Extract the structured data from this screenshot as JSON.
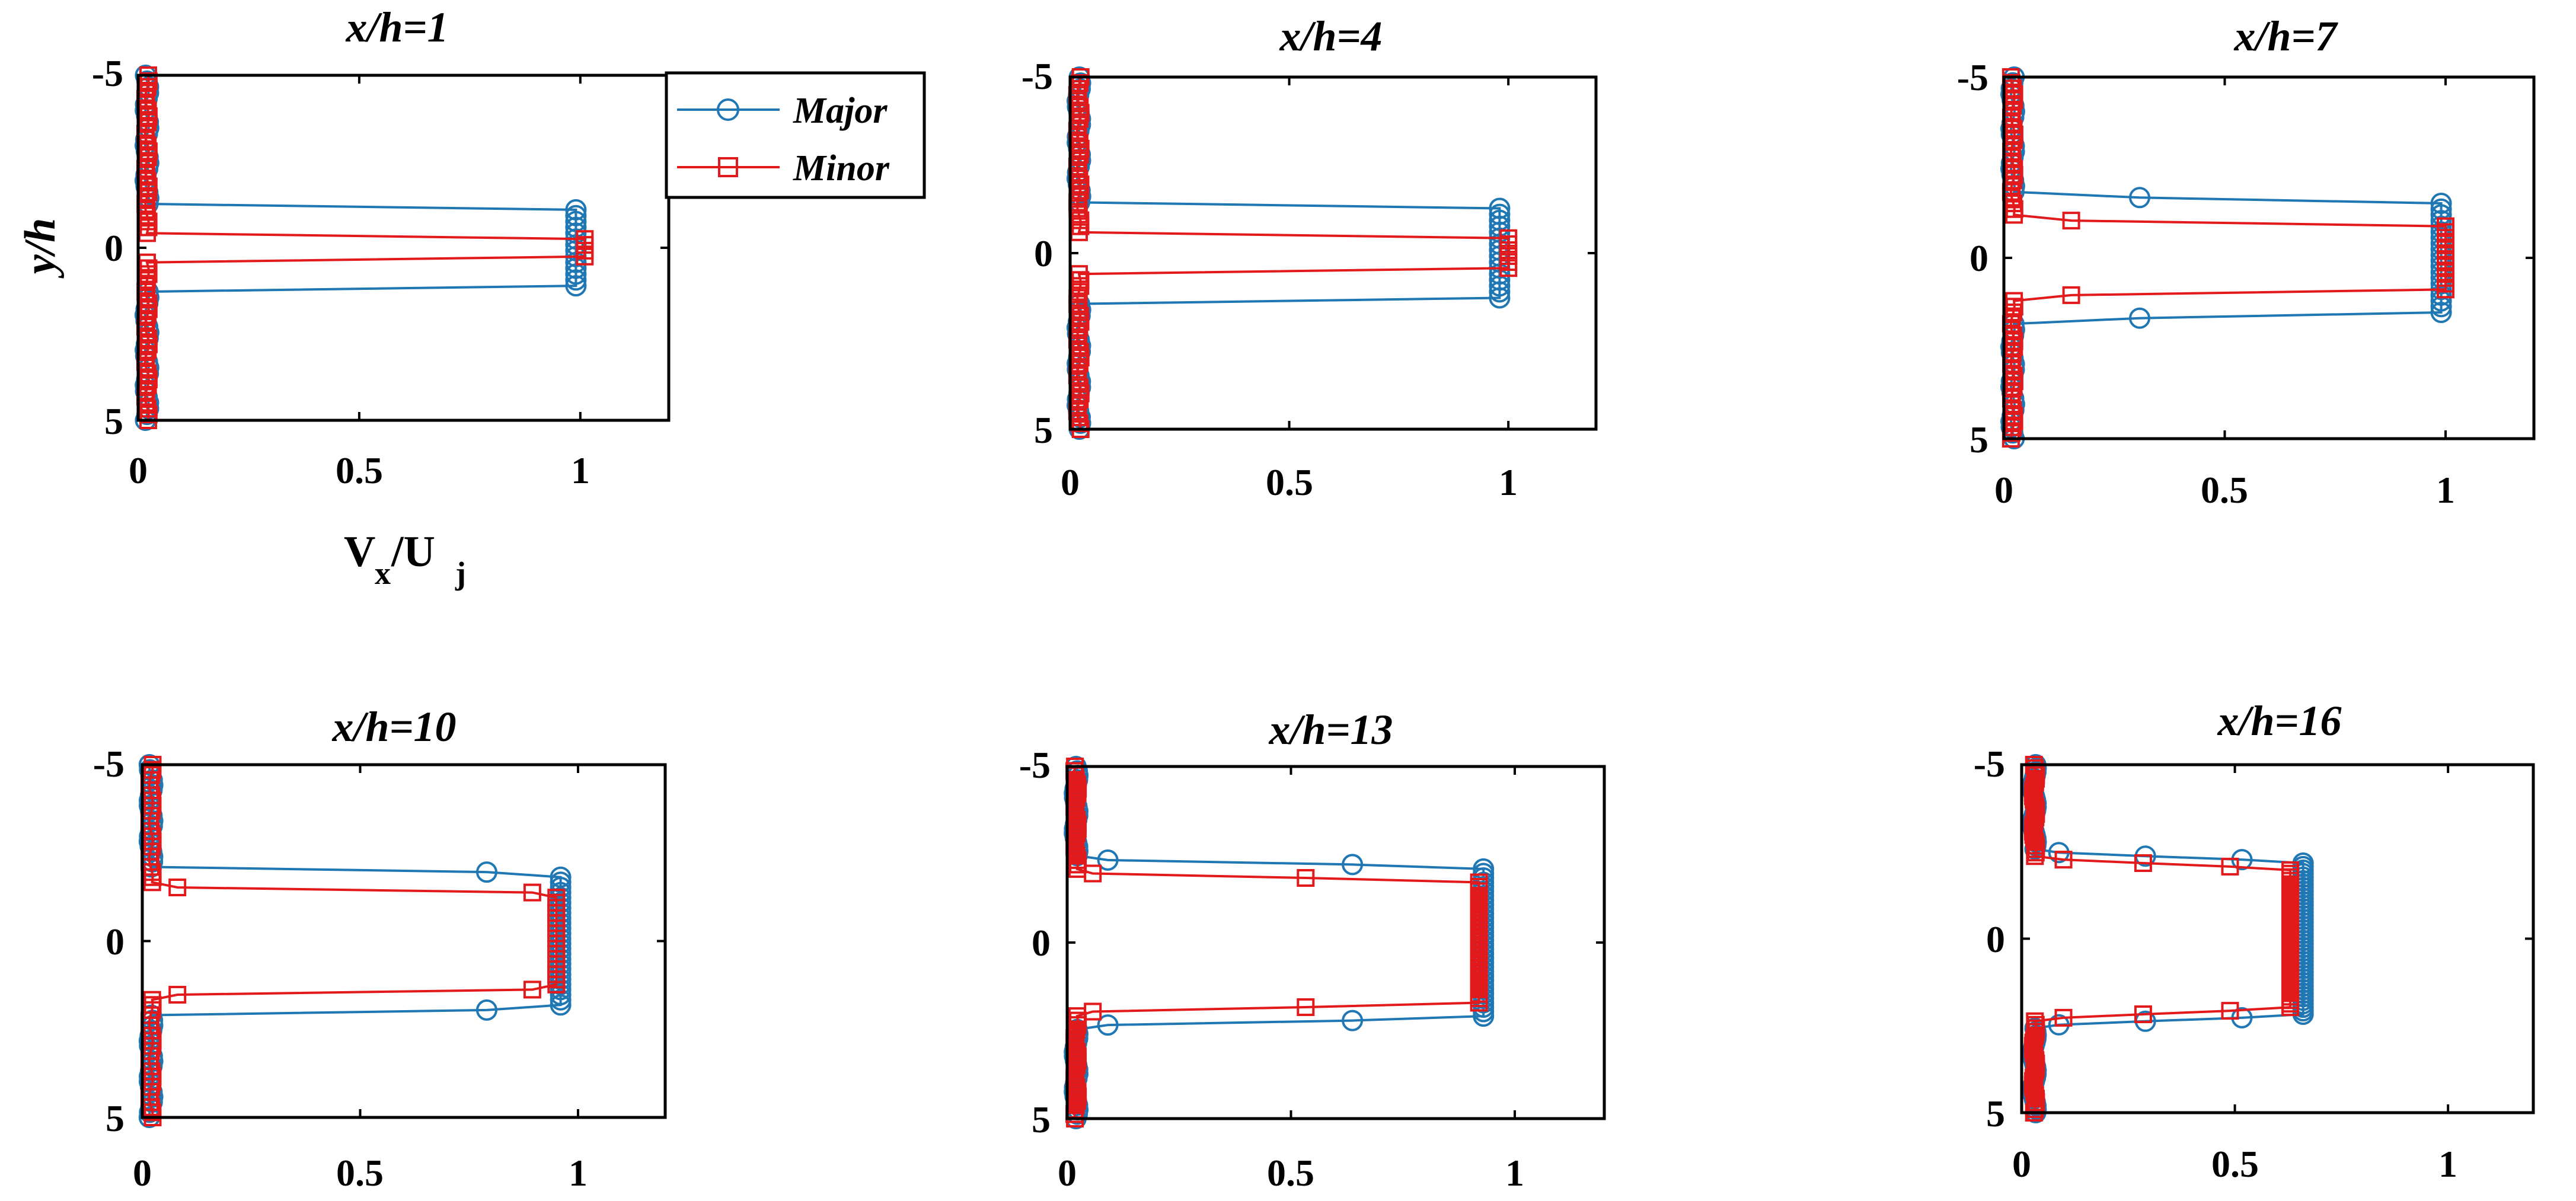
{
  "chart_data": {
    "type": "line",
    "figure_xlabel": {
      "main": "V",
      "sub1": "x",
      "slash": "/U",
      "sub2": "j"
    },
    "figure_ylabel": "y/h",
    "legend": {
      "placement": "top-right of first panel",
      "entries": [
        "Major",
        "Minor"
      ]
    },
    "series_style": {
      "Major": {
        "color": "#1f77b4",
        "marker": "circle"
      },
      "Minor": {
        "color": "#e31a1c",
        "marker": "square"
      }
    },
    "panels": [
      {
        "title": "x/h=1",
        "xlim": [
          0,
          1.2
        ],
        "ylim": [
          -5,
          5
        ],
        "xticks": [
          "0",
          "0.5",
          "1"
        ],
        "yticks": [
          "-5",
          "0",
          "5"
        ],
        "series": [
          {
            "name": "Major",
            "jet_width": 1.15,
            "edge": 0.02,
            "peak": 0.99,
            "floor": 0.02,
            "transition": 0.02,
            "points": 60
          },
          {
            "name": "Minor",
            "jet_width": 0.4,
            "edge": 0.02,
            "peak": 1.01,
            "floor": 0.02,
            "transition": 0.02,
            "points": 60
          }
        ]
      },
      {
        "title": "x/h=4",
        "xlim": [
          0,
          1.2
        ],
        "ylim": [
          -5,
          5
        ],
        "xticks": [
          "0",
          "0.5",
          "1"
        ],
        "yticks": [
          "-5",
          "0",
          "5"
        ],
        "series": [
          {
            "name": "Major",
            "jet_width": 1.35,
            "edge": 0.03,
            "peak": 0.98,
            "floor": 0.02,
            "transition": 0.04,
            "points": 60
          },
          {
            "name": "Minor",
            "jet_width": 0.55,
            "edge": 0.03,
            "peak": 1.0,
            "floor": 0.02,
            "transition": 0.04,
            "points": 60
          }
        ]
      },
      {
        "title": "x/h=7",
        "xlim": [
          0,
          1.2
        ],
        "ylim": [
          -5,
          5
        ],
        "xticks": [
          "0",
          "0.5",
          "1"
        ],
        "yticks": [
          "-5",
          "0",
          "5"
        ],
        "series": [
          {
            "name": "Major",
            "jet_width": 1.65,
            "edge": 0.05,
            "peak": 0.99,
            "floor": 0.02,
            "transition": 0.08,
            "points": 64
          },
          {
            "name": "Minor",
            "jet_width": 1.0,
            "edge": 0.05,
            "peak": 1.0,
            "floor": 0.02,
            "transition": 0.08,
            "points": 64
          }
        ]
      },
      {
        "title": "x/h=10",
        "xlim": [
          0,
          1.2
        ],
        "ylim": [
          -5,
          5
        ],
        "xticks": [
          "0",
          "0.5",
          "1"
        ],
        "yticks": [
          "-5",
          "0",
          "5"
        ],
        "series": [
          {
            "name": "Major",
            "jet_width": 2.0,
            "edge": 0.08,
            "peak": 0.96,
            "floor": 0.02,
            "transition": 0.12,
            "points": 70
          },
          {
            "name": "Minor",
            "jet_width": 1.45,
            "edge": 0.09,
            "peak": 0.95,
            "floor": 0.02,
            "transition": 0.12,
            "points": 70
          }
        ]
      },
      {
        "title": "x/h=13",
        "xlim": [
          0,
          1.2
        ],
        "ylim": [
          -5,
          5
        ],
        "xticks": [
          "0",
          "0.5",
          "1"
        ],
        "yticks": [
          "-5",
          "0",
          "5"
        ],
        "series": [
          {
            "name": "Major",
            "jet_width": 2.25,
            "edge": 0.12,
            "peak": 0.93,
            "floor": 0.02,
            "transition": 0.16,
            "points": 80
          },
          {
            "name": "Minor",
            "jet_width": 1.85,
            "edge": 0.13,
            "peak": 0.92,
            "floor": 0.02,
            "transition": 0.16,
            "points": 80
          }
        ]
      },
      {
        "title": "x/h=16",
        "xlim": [
          0,
          1.2
        ],
        "ylim": [
          -5,
          5
        ],
        "xticks": [
          "0",
          "0.5",
          "1"
        ],
        "yticks": [
          "-5",
          "0",
          "5"
        ],
        "series": [
          {
            "name": "Major",
            "jet_width": 2.35,
            "edge": 0.17,
            "peak": 0.66,
            "floor": 0.03,
            "transition": 0.2,
            "points": 100
          },
          {
            "name": "Minor",
            "jet_width": 2.15,
            "edge": 0.18,
            "peak": 0.63,
            "floor": 0.03,
            "transition": 0.2,
            "points": 100
          }
        ]
      }
    ]
  }
}
